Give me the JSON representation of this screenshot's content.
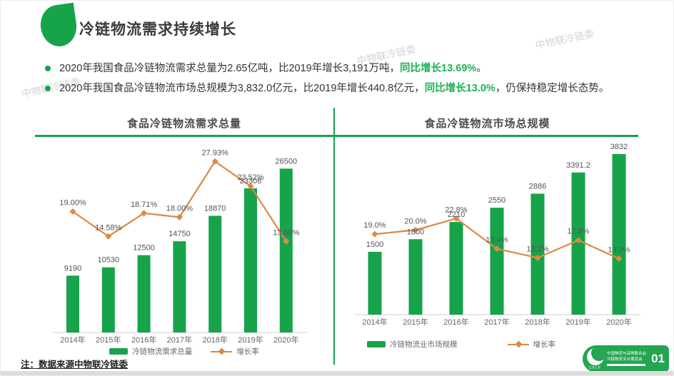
{
  "watermark": "中物联冷链委",
  "header": {
    "title": "冷链物流需求持续增长"
  },
  "bullets": [
    {
      "pre": "2020年我国食品冷链物流需求总量为2.65亿吨，比2019年增长3,191万吨，",
      "highlight": "同比增长13.69%",
      "post": "。"
    },
    {
      "pre": "2020年我国食品冷链物流市场总规模为3,832.0亿元，比2019年增长440.8亿元，",
      "highlight": "同比增长13.0%",
      "post": "，仍保持稳定增长态势。"
    }
  ],
  "colors": {
    "green": "#16a34a",
    "orange": "#db8a45",
    "highlight": "#1fb254"
  },
  "chart_data": [
    {
      "type": "bar",
      "title": "食品冷链物流需求总量",
      "categories": [
        "2014年",
        "2015年",
        "2016年",
        "2017年",
        "2018年",
        "2019年",
        "2020年"
      ],
      "series": [
        {
          "name": "冷链物流需求总量",
          "kind": "bar",
          "values": [
            9190,
            10530,
            12500,
            14750,
            18870,
            23308,
            26500
          ],
          "labels": [
            "9190",
            "10530",
            "12500",
            "14750",
            "18870",
            "23308",
            "26500"
          ]
        },
        {
          "name": "增长率",
          "kind": "line",
          "values": [
            19.0,
            14.58,
            18.71,
            18.0,
            27.93,
            23.52,
            13.69
          ],
          "labels": [
            "19.00%",
            "14.58%",
            "18.71%",
            "18.00%",
            "27.93%",
            "23.52%",
            "13.69%"
          ]
        }
      ],
      "bar_axis_max": 30000,
      "line_axis_max": 30,
      "grid": false,
      "legend_position": "bottom"
    },
    {
      "type": "bar",
      "title": "食品冷链物流市场总规模",
      "categories": [
        "2014年",
        "2015年",
        "2016年",
        "2017年",
        "2018年",
        "2019年",
        "2020年"
      ],
      "series": [
        {
          "name": "冷链物流业市场规模",
          "kind": "bar",
          "values": [
            1500,
            1800,
            2210,
            2550,
            2886,
            3391.2,
            3832
          ],
          "labels": [
            "1500",
            "1800",
            "2210",
            "2550",
            "2886",
            "3391.2",
            "3832"
          ]
        },
        {
          "name": "增长率",
          "kind": "line",
          "values": [
            19.0,
            20.0,
            22.8,
            15.4,
            13.2,
            17.5,
            13.0
          ],
          "labels": [
            "19.0%",
            "20.0%",
            "22.8%",
            "15.4%",
            "13.2%",
            "17.5%",
            "13.0%"
          ]
        }
      ],
      "bar_axis_max": 4000,
      "line_axis_max": 41,
      "grid": false,
      "legend_position": "bottom"
    }
  ],
  "footer": {
    "note": "注：数据来源中物联冷链委",
    "badge": {
      "org_line1": "中国物流与采购联合会",
      "org_line2": "冷链物流专业委员会",
      "logo_sub": "CFLP",
      "page": "01"
    }
  }
}
